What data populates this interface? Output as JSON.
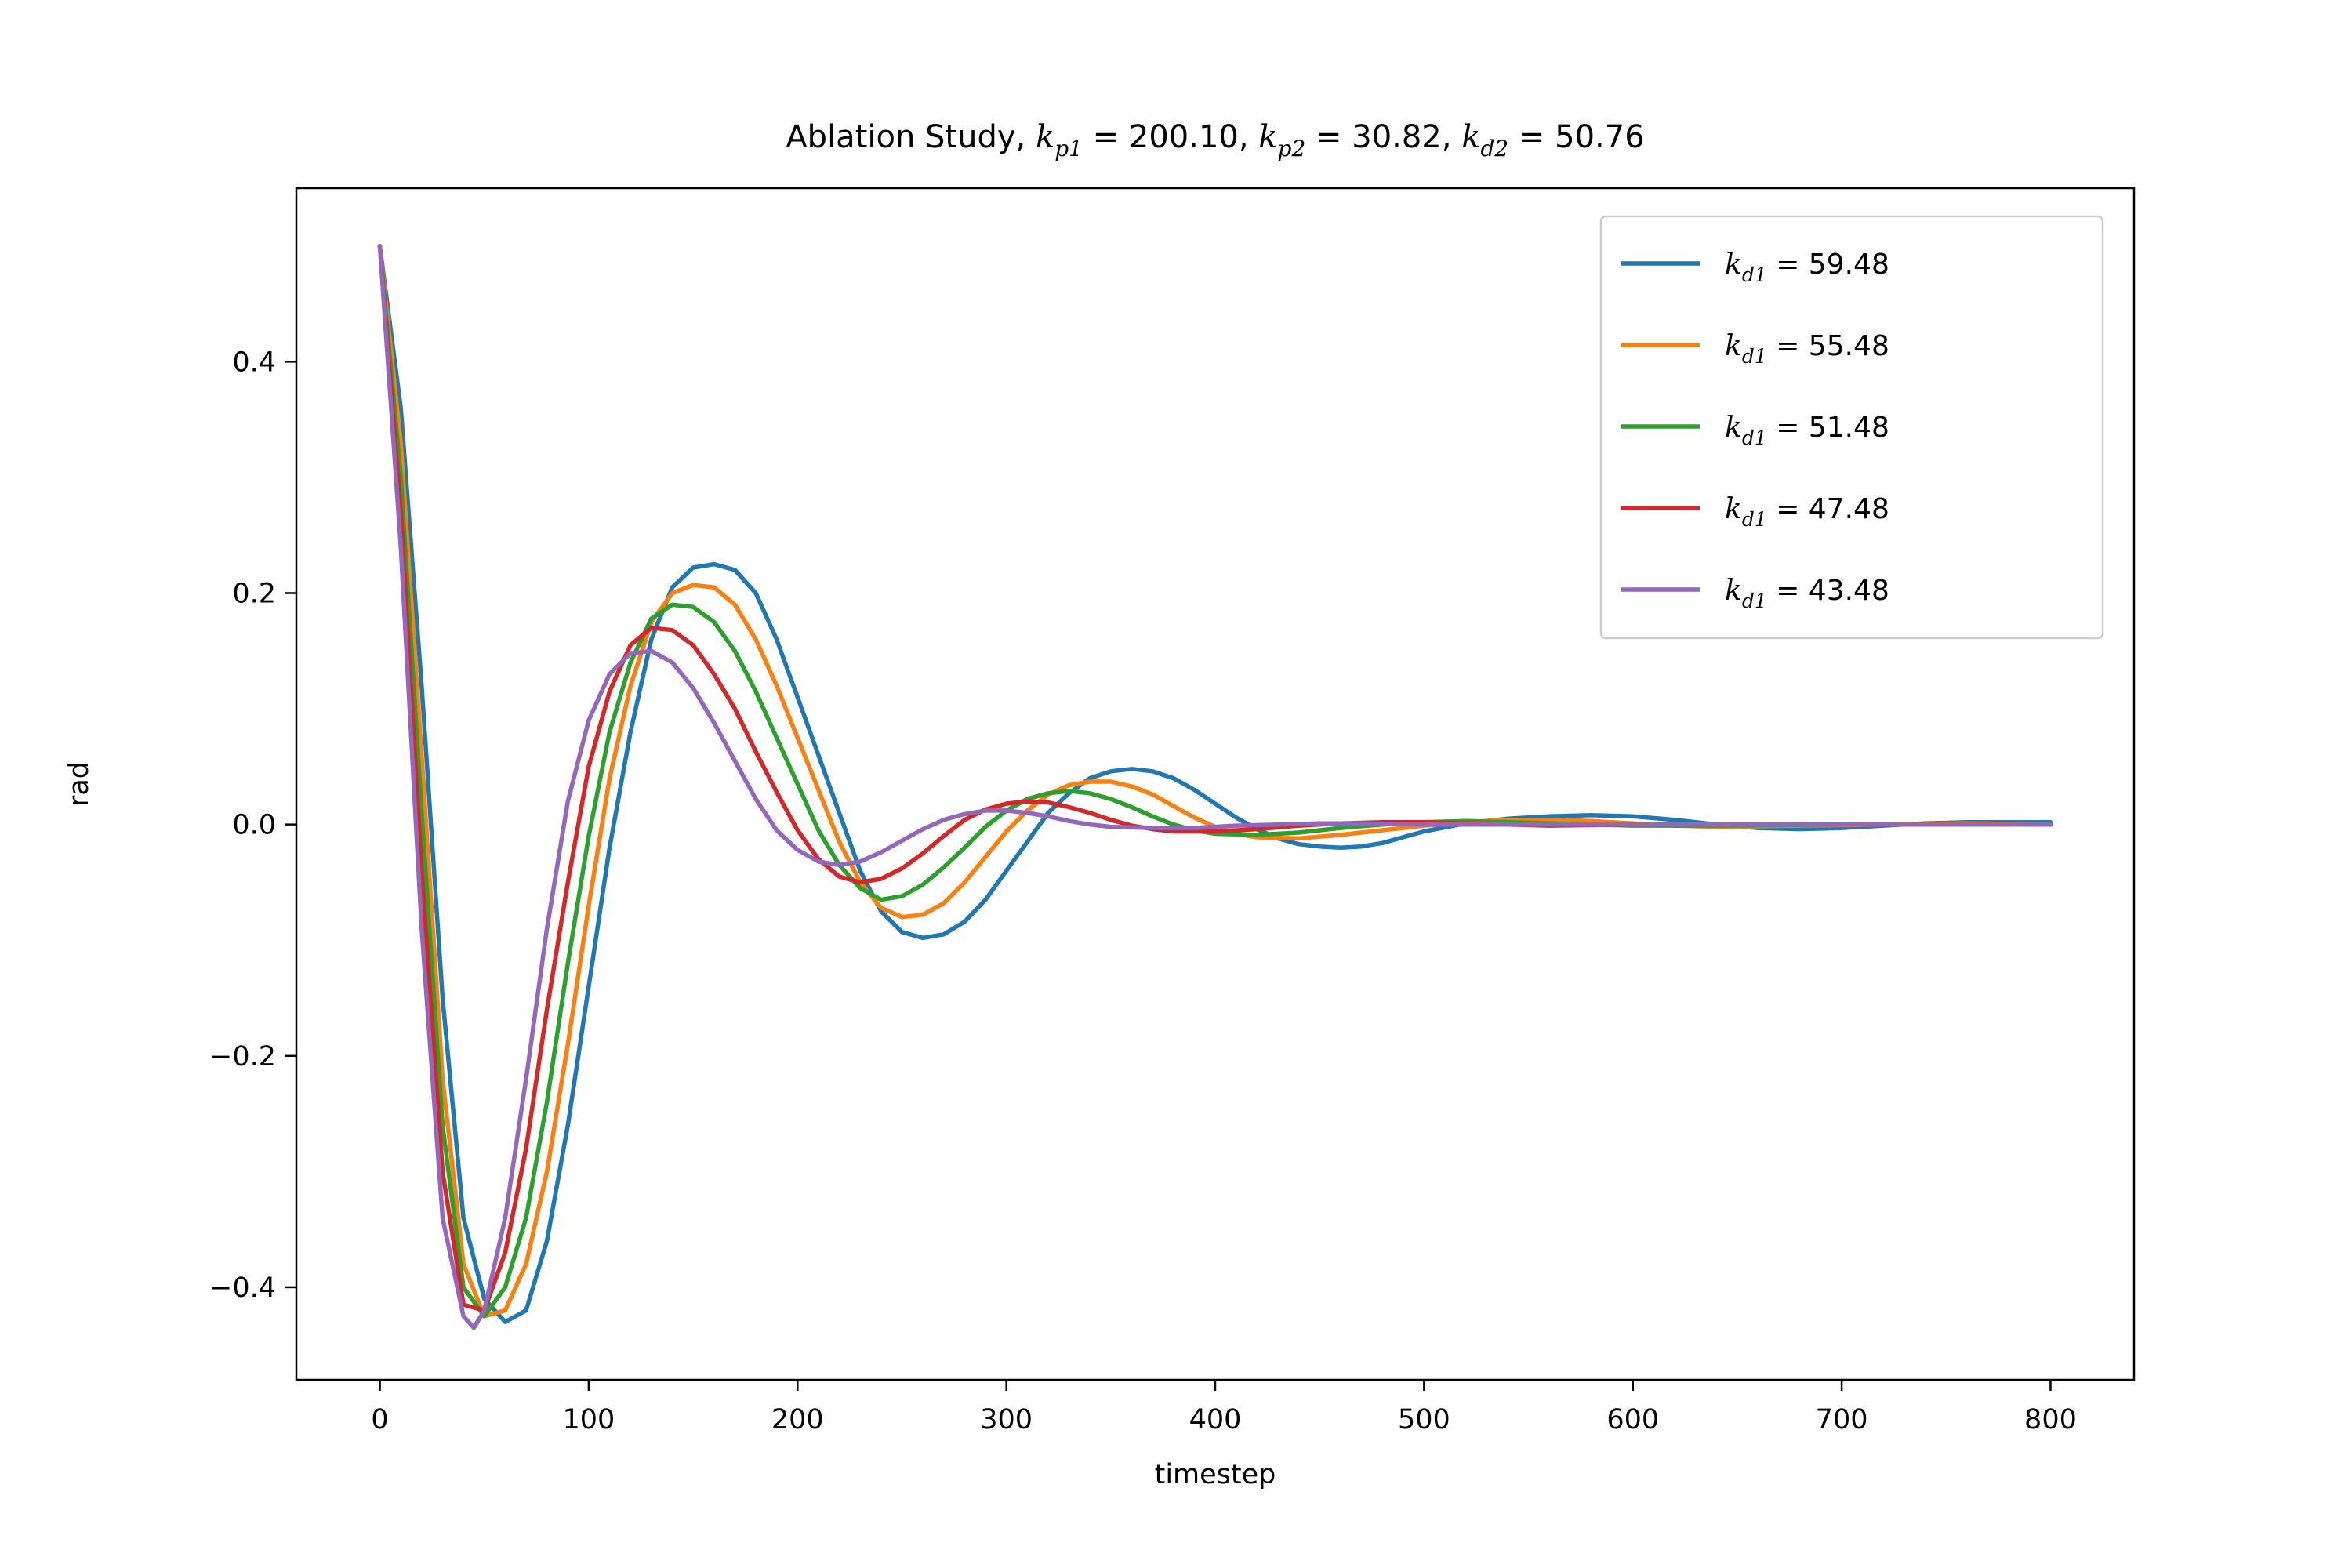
{
  "chart_data": {
    "type": "line",
    "title": {
      "prefix": "Ablation Study, ",
      "params": [
        {
          "sym": "k",
          "sub": "p1",
          "value": "200.10"
        },
        {
          "sym": "k",
          "sub": "p2",
          "value": "30.82"
        },
        {
          "sym": "k",
          "sub": "d2",
          "value": "50.76"
        }
      ]
    },
    "xlabel": "timestep",
    "ylabel": "rad",
    "xlim": [
      -40,
      840
    ],
    "ylim": [
      -0.48,
      0.55
    ],
    "xticks": [
      0,
      100,
      200,
      300,
      400,
      500,
      600,
      700,
      800
    ],
    "xtick_labels": [
      "0",
      "100",
      "200",
      "300",
      "400",
      "500",
      "600",
      "700",
      "800"
    ],
    "yticks": [
      -0.4,
      -0.2,
      0.0,
      0.2,
      0.4
    ],
    "ytick_labels": [
      "−0.4",
      "−0.2",
      "0.0",
      "0.2",
      "0.4"
    ],
    "grid": false,
    "legend_position": "top-right",
    "series": [
      {
        "label_sym": "k",
        "label_sub": "d1",
        "label_value": "59.48",
        "color": "#1f77b4",
        "points": [
          [
            0,
            0.5
          ],
          [
            10,
            0.36
          ],
          [
            20,
            0.12
          ],
          [
            30,
            -0.15
          ],
          [
            40,
            -0.34
          ],
          [
            50,
            -0.41
          ],
          [
            60,
            -0.43
          ],
          [
            70,
            -0.42
          ],
          [
            80,
            -0.36
          ],
          [
            90,
            -0.26
          ],
          [
            100,
            -0.14
          ],
          [
            110,
            -0.02
          ],
          [
            120,
            0.08
          ],
          [
            130,
            0.16
          ],
          [
            140,
            0.205
          ],
          [
            150,
            0.222
          ],
          [
            160,
            0.225
          ],
          [
            170,
            0.22
          ],
          [
            180,
            0.2
          ],
          [
            190,
            0.16
          ],
          [
            200,
            0.11
          ],
          [
            210,
            0.06
          ],
          [
            220,
            0.01
          ],
          [
            230,
            -0.04
          ],
          [
            240,
            -0.075
          ],
          [
            250,
            -0.093
          ],
          [
            260,
            -0.098
          ],
          [
            270,
            -0.095
          ],
          [
            280,
            -0.084
          ],
          [
            290,
            -0.065
          ],
          [
            300,
            -0.04
          ],
          [
            310,
            -0.015
          ],
          [
            320,
            0.01
          ],
          [
            330,
            0.027
          ],
          [
            340,
            0.04
          ],
          [
            350,
            0.046
          ],
          [
            360,
            0.048
          ],
          [
            370,
            0.046
          ],
          [
            380,
            0.04
          ],
          [
            390,
            0.03
          ],
          [
            400,
            0.018
          ],
          [
            410,
            0.006
          ],
          [
            420,
            -0.004
          ],
          [
            430,
            -0.012
          ],
          [
            440,
            -0.017
          ],
          [
            450,
            -0.019
          ],
          [
            460,
            -0.02
          ],
          [
            470,
            -0.019
          ],
          [
            480,
            -0.016
          ],
          [
            490,
            -0.011
          ],
          [
            500,
            -0.006
          ],
          [
            520,
            0.001
          ],
          [
            540,
            0.005
          ],
          [
            560,
            0.007
          ],
          [
            580,
            0.008
          ],
          [
            600,
            0.007
          ],
          [
            620,
            0.004
          ],
          [
            640,
            0.0
          ],
          [
            660,
            -0.003
          ],
          [
            680,
            -0.004
          ],
          [
            700,
            -0.003
          ],
          [
            720,
            -0.001
          ],
          [
            740,
            0.001
          ],
          [
            760,
            0.002
          ],
          [
            780,
            0.002
          ],
          [
            800,
            0.002
          ]
        ]
      },
      {
        "label_sym": "k",
        "label_sub": "d1",
        "label_value": "55.48",
        "color": "#ff7f0e",
        "points": [
          [
            0,
            0.5
          ],
          [
            10,
            0.33
          ],
          [
            20,
            0.06
          ],
          [
            30,
            -0.22
          ],
          [
            40,
            -0.38
          ],
          [
            50,
            -0.425
          ],
          [
            60,
            -0.42
          ],
          [
            70,
            -0.38
          ],
          [
            80,
            -0.3
          ],
          [
            90,
            -0.19
          ],
          [
            100,
            -0.07
          ],
          [
            110,
            0.04
          ],
          [
            120,
            0.12
          ],
          [
            130,
            0.175
          ],
          [
            140,
            0.2
          ],
          [
            150,
            0.207
          ],
          [
            160,
            0.205
          ],
          [
            170,
            0.19
          ],
          [
            180,
            0.16
          ],
          [
            190,
            0.12
          ],
          [
            200,
            0.075
          ],
          [
            210,
            0.03
          ],
          [
            220,
            -0.015
          ],
          [
            230,
            -0.05
          ],
          [
            240,
            -0.072
          ],
          [
            250,
            -0.08
          ],
          [
            260,
            -0.078
          ],
          [
            270,
            -0.068
          ],
          [
            280,
            -0.05
          ],
          [
            290,
            -0.028
          ],
          [
            300,
            -0.006
          ],
          [
            310,
            0.012
          ],
          [
            320,
            0.026
          ],
          [
            330,
            0.034
          ],
          [
            340,
            0.037
          ],
          [
            350,
            0.037
          ],
          [
            360,
            0.033
          ],
          [
            370,
            0.026
          ],
          [
            380,
            0.016
          ],
          [
            390,
            0.006
          ],
          [
            400,
            -0.002
          ],
          [
            410,
            -0.008
          ],
          [
            420,
            -0.011
          ],
          [
            440,
            -0.012
          ],
          [
            460,
            -0.009
          ],
          [
            480,
            -0.005
          ],
          [
            500,
            -0.001
          ],
          [
            520,
            0.002
          ],
          [
            540,
            0.004
          ],
          [
            560,
            0.004
          ],
          [
            580,
            0.003
          ],
          [
            600,
            0.001
          ],
          [
            620,
            -0.001
          ],
          [
            640,
            -0.002
          ],
          [
            680,
            -0.001
          ],
          [
            720,
            0.0
          ],
          [
            760,
            0.001
          ],
          [
            800,
            0.0
          ]
        ]
      },
      {
        "label_sym": "k",
        "label_sub": "d1",
        "label_value": "51.48",
        "color": "#2ca02c",
        "points": [
          [
            0,
            0.5
          ],
          [
            10,
            0.3
          ],
          [
            20,
            0.01
          ],
          [
            30,
            -0.26
          ],
          [
            40,
            -0.4
          ],
          [
            50,
            -0.425
          ],
          [
            60,
            -0.4
          ],
          [
            70,
            -0.34
          ],
          [
            80,
            -0.24
          ],
          [
            90,
            -0.12
          ],
          [
            100,
            -0.01
          ],
          [
            110,
            0.08
          ],
          [
            120,
            0.14
          ],
          [
            130,
            0.178
          ],
          [
            140,
            0.19
          ],
          [
            150,
            0.188
          ],
          [
            160,
            0.175
          ],
          [
            170,
            0.15
          ],
          [
            180,
            0.115
          ],
          [
            190,
            0.075
          ],
          [
            200,
            0.035
          ],
          [
            210,
            -0.005
          ],
          [
            220,
            -0.035
          ],
          [
            230,
            -0.055
          ],
          [
            240,
            -0.065
          ],
          [
            250,
            -0.062
          ],
          [
            260,
            -0.052
          ],
          [
            270,
            -0.037
          ],
          [
            280,
            -0.02
          ],
          [
            290,
            -0.002
          ],
          [
            300,
            0.012
          ],
          [
            310,
            0.022
          ],
          [
            320,
            0.027
          ],
          [
            330,
            0.029
          ],
          [
            340,
            0.027
          ],
          [
            350,
            0.022
          ],
          [
            360,
            0.015
          ],
          [
            370,
            0.007
          ],
          [
            380,
            0.0
          ],
          [
            390,
            -0.005
          ],
          [
            400,
            -0.008
          ],
          [
            420,
            -0.009
          ],
          [
            440,
            -0.007
          ],
          [
            460,
            -0.003
          ],
          [
            480,
            0.0
          ],
          [
            500,
            0.002
          ],
          [
            520,
            0.003
          ],
          [
            540,
            0.002
          ],
          [
            560,
            0.001
          ],
          [
            580,
            0.0
          ],
          [
            600,
            -0.001
          ],
          [
            640,
            -0.001
          ],
          [
            700,
            0.0
          ],
          [
            800,
            0.0
          ]
        ]
      },
      {
        "label_sym": "k",
        "label_sub": "d1",
        "label_value": "47.48",
        "color": "#d62728",
        "points": [
          [
            0,
            0.5
          ],
          [
            10,
            0.27
          ],
          [
            20,
            -0.04
          ],
          [
            30,
            -0.3
          ],
          [
            40,
            -0.415
          ],
          [
            50,
            -0.42
          ],
          [
            60,
            -0.37
          ],
          [
            70,
            -0.28
          ],
          [
            80,
            -0.16
          ],
          [
            90,
            -0.05
          ],
          [
            100,
            0.05
          ],
          [
            110,
            0.115
          ],
          [
            120,
            0.155
          ],
          [
            130,
            0.17
          ],
          [
            140,
            0.168
          ],
          [
            150,
            0.155
          ],
          [
            160,
            0.13
          ],
          [
            170,
            0.1
          ],
          [
            180,
            0.063
          ],
          [
            190,
            0.028
          ],
          [
            200,
            -0.005
          ],
          [
            210,
            -0.03
          ],
          [
            220,
            -0.045
          ],
          [
            230,
            -0.05
          ],
          [
            240,
            -0.047
          ],
          [
            250,
            -0.038
          ],
          [
            260,
            -0.025
          ],
          [
            270,
            -0.01
          ],
          [
            280,
            0.004
          ],
          [
            290,
            0.013
          ],
          [
            300,
            0.018
          ],
          [
            310,
            0.02
          ],
          [
            320,
            0.019
          ],
          [
            330,
            0.015
          ],
          [
            340,
            0.01
          ],
          [
            350,
            0.004
          ],
          [
            360,
            -0.001
          ],
          [
            370,
            -0.004
          ],
          [
            380,
            -0.006
          ],
          [
            400,
            -0.006
          ],
          [
            420,
            -0.004
          ],
          [
            440,
            -0.001
          ],
          [
            460,
            0.001
          ],
          [
            480,
            0.002
          ],
          [
            500,
            0.002
          ],
          [
            520,
            0.001
          ],
          [
            540,
            0.0
          ],
          [
            560,
            -0.001
          ],
          [
            600,
            0.0
          ],
          [
            700,
            0.0
          ],
          [
            800,
            0.0
          ]
        ]
      },
      {
        "label_sym": "k",
        "label_sub": "d1",
        "label_value": "43.48",
        "color": "#9467bd",
        "points": [
          [
            0,
            0.5
          ],
          [
            10,
            0.24
          ],
          [
            20,
            -0.09
          ],
          [
            30,
            -0.34
          ],
          [
            40,
            -0.425
          ],
          [
            45,
            -0.435
          ],
          [
            50,
            -0.42
          ],
          [
            60,
            -0.34
          ],
          [
            70,
            -0.22
          ],
          [
            80,
            -0.09
          ],
          [
            90,
            0.02
          ],
          [
            100,
            0.09
          ],
          [
            110,
            0.13
          ],
          [
            120,
            0.148
          ],
          [
            130,
            0.15
          ],
          [
            140,
            0.14
          ],
          [
            150,
            0.118
          ],
          [
            160,
            0.088
          ],
          [
            170,
            0.055
          ],
          [
            180,
            0.022
          ],
          [
            190,
            -0.005
          ],
          [
            200,
            -0.022
          ],
          [
            210,
            -0.032
          ],
          [
            220,
            -0.035
          ],
          [
            230,
            -0.032
          ],
          [
            240,
            -0.024
          ],
          [
            250,
            -0.014
          ],
          [
            260,
            -0.004
          ],
          [
            270,
            0.004
          ],
          [
            280,
            0.009
          ],
          [
            290,
            0.012
          ],
          [
            300,
            0.012
          ],
          [
            310,
            0.01
          ],
          [
            320,
            0.007
          ],
          [
            330,
            0.003
          ],
          [
            340,
            0.0
          ],
          [
            350,
            -0.002
          ],
          [
            370,
            -0.003
          ],
          [
            390,
            -0.003
          ],
          [
            410,
            -0.001
          ],
          [
            430,
            0.0
          ],
          [
            450,
            0.001
          ],
          [
            470,
            0.001
          ],
          [
            500,
            0.0
          ],
          [
            600,
            0.0
          ],
          [
            700,
            0.0
          ],
          [
            800,
            0.0
          ]
        ]
      }
    ]
  }
}
